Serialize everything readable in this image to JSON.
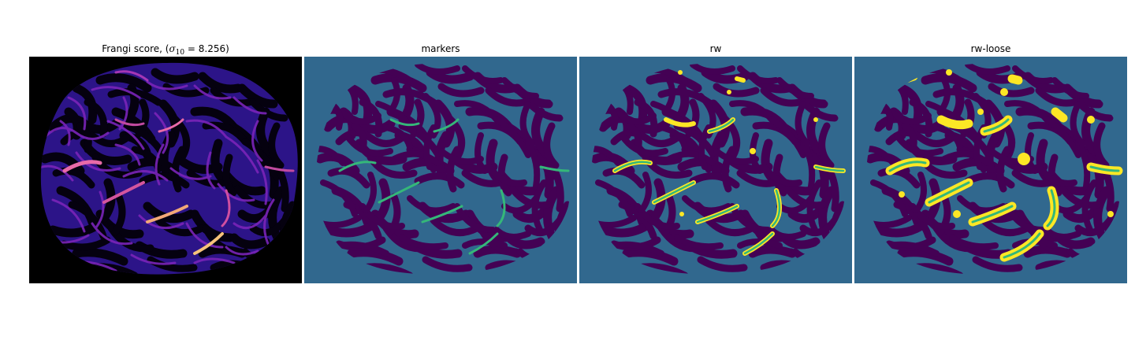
{
  "panels": [
    {
      "title_prefix": "Frangi score, (",
      "title_sigma": "σ",
      "title_sub": "10",
      "title_suffix": " = 8.256)",
      "colormap": "magma-like",
      "background": "#000000"
    },
    {
      "title": "markers",
      "background": "#31688e",
      "marker_color": "#35b779"
    },
    {
      "title": "rw",
      "background": "#31688e",
      "segment_color": "#fde725"
    },
    {
      "title": "rw-loose",
      "background": "#31688e",
      "segment_color": "#fde725"
    }
  ],
  "colors": {
    "label_bg": "#31688e",
    "label_dark": "#440154",
    "label_mid": "#35b779",
    "label_bright": "#fde725",
    "frangi_low": "#2c1488",
    "frangi_mid": "#9b30c8",
    "frangi_high": "#f4c46a"
  }
}
